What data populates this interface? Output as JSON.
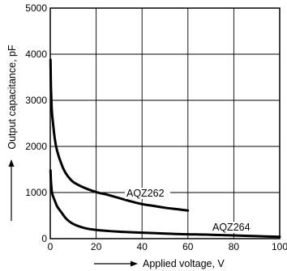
{
  "chart_data": {
    "type": "line",
    "title": "",
    "xlabel": "Applied voltage, V",
    "ylabel": "Output capacitance, pF",
    "xlim": [
      0,
      100
    ],
    "ylim": [
      0,
      5000
    ],
    "x_ticks": [
      0,
      20,
      40,
      60,
      80,
      100
    ],
    "y_ticks": [
      0,
      1000,
      2000,
      3000,
      4000,
      5000
    ],
    "x_tick_labels": [
      "0",
      "20",
      "40",
      "60",
      "80",
      "100"
    ],
    "y_tick_labels": [
      "0",
      "1000",
      "2000",
      "3000",
      "4000",
      "5000"
    ],
    "grid": true,
    "legend": "none",
    "series": [
      {
        "name": "AQZ262",
        "x": [
          0.1,
          0.3,
          0.6,
          1,
          2,
          3,
          5,
          7,
          10,
          15,
          20,
          25,
          30,
          35,
          40,
          45,
          50,
          55,
          60
        ],
        "y": [
          3880,
          3300,
          2850,
          2600,
          2150,
          1900,
          1600,
          1400,
          1230,
          1100,
          1010,
          950,
          880,
          810,
          750,
          710,
          670,
          640,
          610
        ]
      },
      {
        "name": "AQZ264",
        "x": [
          0.1,
          0.3,
          0.6,
          1,
          2,
          3,
          5,
          7,
          10,
          15,
          20,
          30,
          40,
          50,
          60,
          70,
          80,
          90,
          100
        ],
        "y": [
          1480,
          1250,
          1060,
          950,
          820,
          700,
          560,
          430,
          320,
          230,
          190,
          150,
          130,
          110,
          95,
          85,
          70,
          55,
          40
        ]
      }
    ],
    "annotations": [
      "AQZ262",
      "AQZ264"
    ]
  }
}
